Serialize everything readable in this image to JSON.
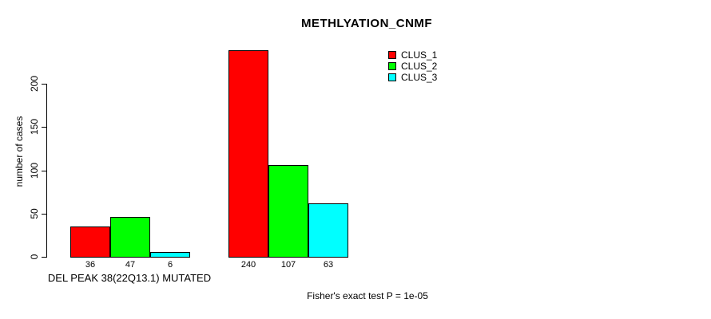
{
  "chart_data": {
    "type": "bar",
    "title": "METHLYATION_CNMF",
    "ylabel": "number of cases",
    "xlabel": "DEL PEAK 38(22Q13.1) MUTATED",
    "annotation": "Fisher's exact test P = 1e-05",
    "yticks": [
      0,
      50,
      100,
      150,
      200
    ],
    "ylim": [
      0,
      245
    ],
    "grid": false,
    "legend_position": "top-right",
    "categories": [
      "DEL PEAK 38(22Q13.1) MUTATED",
      ""
    ],
    "series": [
      {
        "name": "CLUS_1",
        "color": "#ff0000",
        "values": [
          36,
          240
        ]
      },
      {
        "name": "CLUS_2",
        "color": "#00ff00",
        "values": [
          47,
          107
        ]
      },
      {
        "name": "CLUS_3",
        "color": "#00ffff",
        "values": [
          6,
          63
        ]
      }
    ],
    "bar_value_labels": [
      [
        36,
        47,
        6
      ],
      [
        240,
        107,
        63
      ]
    ]
  }
}
